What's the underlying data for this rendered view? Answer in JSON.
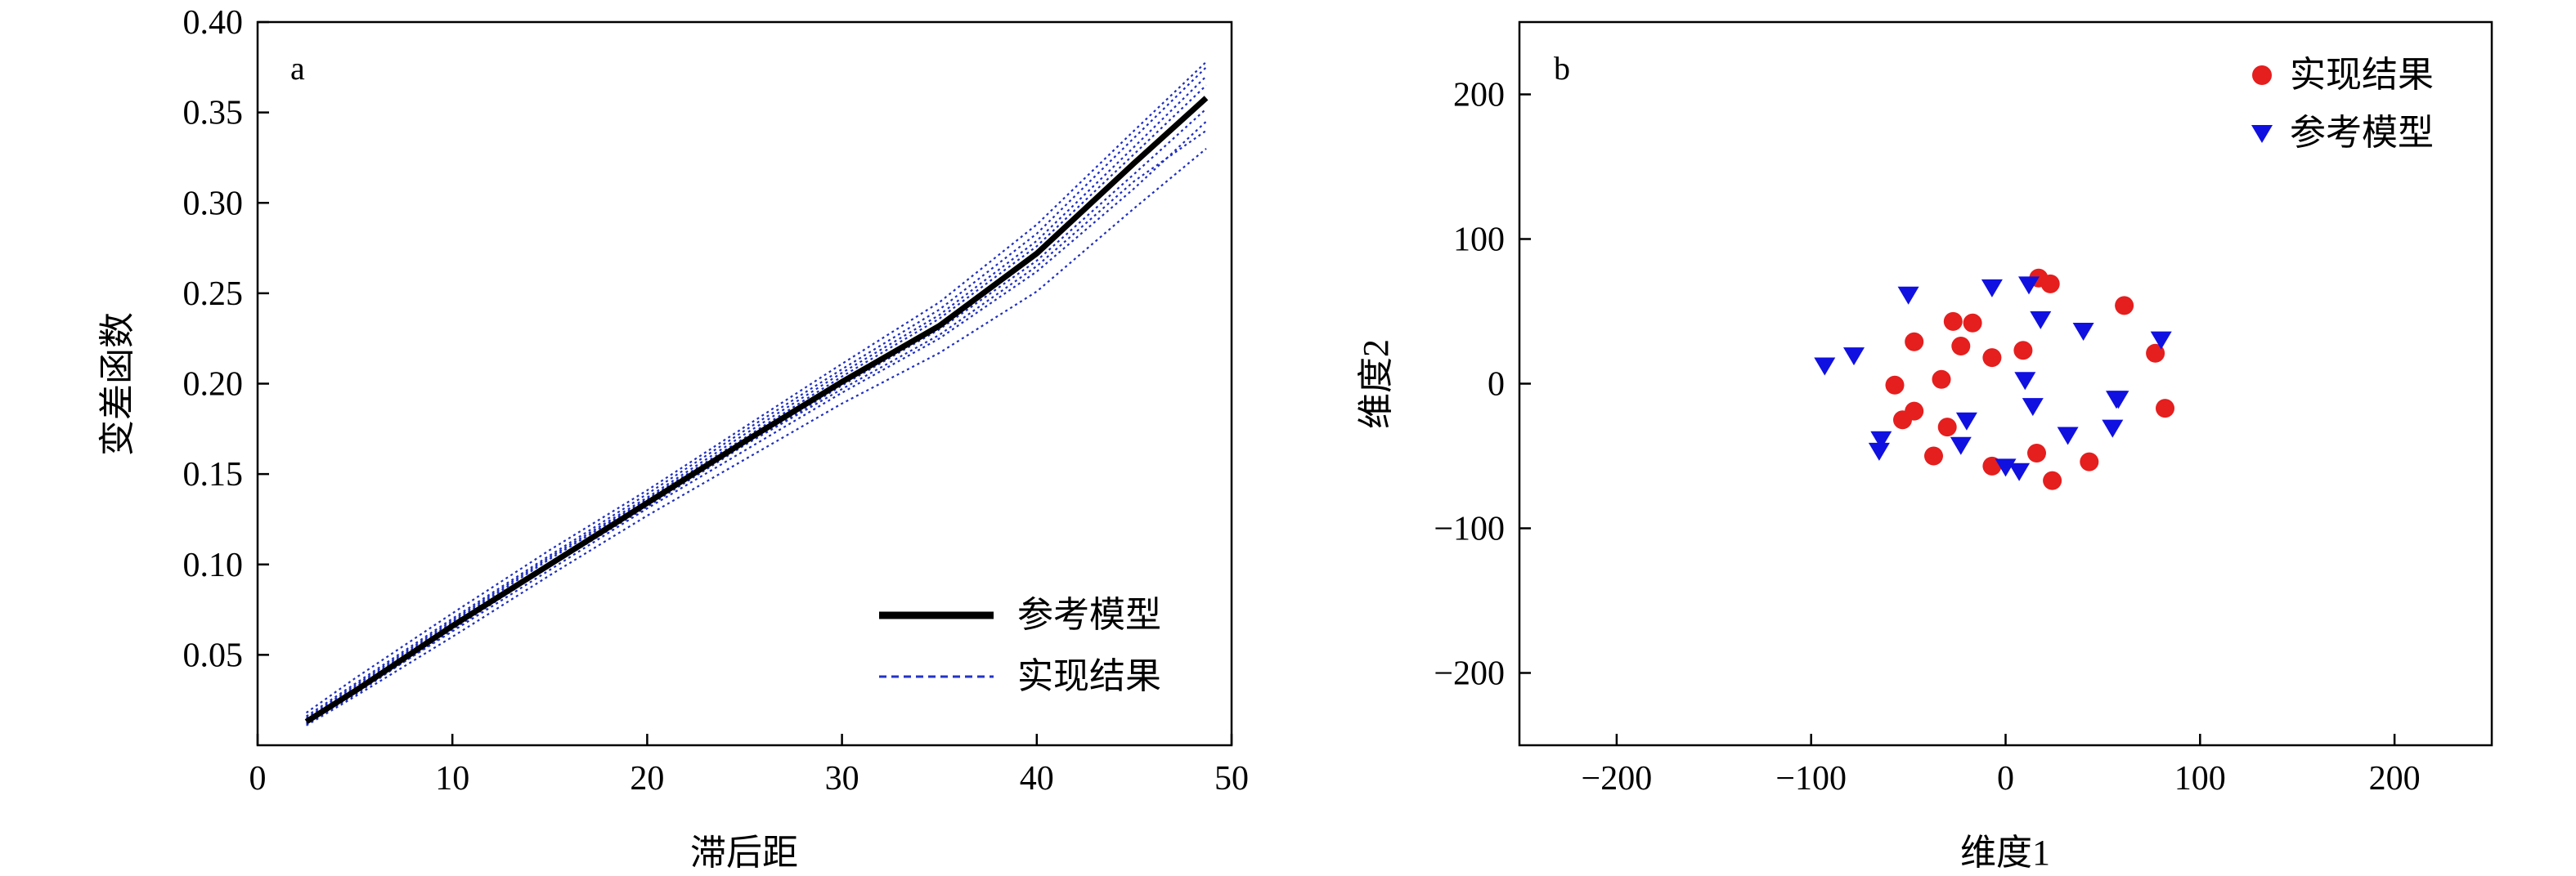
{
  "chart_data": [
    {
      "type": "line",
      "panel_label": "a",
      "xlabel": "滞后距",
      "ylabel": "变差函数",
      "xlim": [
        0,
        50
      ],
      "ylim": [
        0,
        0.4
      ],
      "xticks": [
        0,
        10,
        20,
        30,
        40,
        50
      ],
      "yticks": [
        0.05,
        0.1,
        0.15,
        0.2,
        0.25,
        0.3,
        0.35,
        0.4
      ],
      "xtick_labels": [
        "0",
        "10",
        "20",
        "30",
        "40",
        "50"
      ],
      "ytick_labels": [
        "0.05",
        "0.10",
        "0.15",
        "0.20",
        "0.25",
        "0.30",
        "0.35",
        "0.40"
      ],
      "legend_position": "bottom-right",
      "colors": {
        "reference": "#000000",
        "realizations": "#1f2fbf"
      },
      "x": [
        2.5,
        5,
        10,
        15,
        20,
        25,
        30,
        35,
        40,
        45,
        48.7
      ],
      "series": [
        {
          "name": "参考模型",
          "style": "solid-thick",
          "values": [
            0.013,
            0.03,
            0.066,
            0.1,
            0.134,
            0.168,
            0.201,
            0.232,
            0.272,
            0.322,
            0.358
          ]
        },
        {
          "name": "实现结果",
          "style": "dotted",
          "values": [
            0.016,
            0.034,
            0.07,
            0.105,
            0.139,
            0.174,
            0.208,
            0.241,
            0.283,
            0.336,
            0.375
          ]
        },
        {
          "style": "dotted",
          "values": [
            0.013,
            0.029,
            0.063,
            0.097,
            0.131,
            0.163,
            0.195,
            0.225,
            0.262,
            0.308,
            0.345
          ]
        },
        {
          "style": "dotted",
          "values": [
            0.011,
            0.027,
            0.06,
            0.094,
            0.127,
            0.158,
            0.189,
            0.217,
            0.251,
            0.297,
            0.33
          ]
        },
        {
          "style": "dotted",
          "values": [
            0.018,
            0.037,
            0.073,
            0.108,
            0.141,
            0.176,
            0.211,
            0.245,
            0.288,
            0.34,
            0.378
          ]
        },
        {
          "style": "dotted",
          "values": [
            0.014,
            0.032,
            0.068,
            0.103,
            0.136,
            0.17,
            0.204,
            0.236,
            0.276,
            0.327,
            0.365
          ]
        },
        {
          "style": "dotted",
          "values": [
            0.012,
            0.028,
            0.064,
            0.099,
            0.132,
            0.166,
            0.199,
            0.23,
            0.268,
            0.316,
            0.352
          ]
        },
        {
          "style": "dotted",
          "values": [
            0.015,
            0.033,
            0.069,
            0.104,
            0.137,
            0.172,
            0.206,
            0.238,
            0.279,
            0.331,
            0.37
          ]
        },
        {
          "style": "dotted",
          "values": [
            0.012,
            0.03,
            0.065,
            0.1,
            0.134,
            0.166,
            0.197,
            0.227,
            0.265,
            0.312,
            0.34
          ]
        }
      ]
    },
    {
      "type": "scatter",
      "panel_label": "b",
      "xlabel": "维度1",
      "ylabel": "维度2",
      "xlim": [
        -250,
        250
      ],
      "ylim": [
        -250,
        250
      ],
      "xticks": [
        -200,
        -100,
        0,
        100,
        200
      ],
      "yticks": [
        -200,
        -100,
        0,
        100,
        200
      ],
      "xtick_labels": [
        "−200",
        "−100",
        "0",
        "100",
        "200"
      ],
      "ytick_labels": [
        "−200",
        "−100",
        "0",
        "100",
        "200"
      ],
      "legend_position": "top-right",
      "colors": {
        "realizations": "#e51e1e",
        "reference": "#1010e0"
      },
      "series": [
        {
          "name": "实现结果",
          "marker": "circle",
          "x": [
            17,
            23,
            61,
            -27,
            -17,
            -47,
            -7,
            9,
            77,
            -57,
            -33,
            -47,
            -53,
            -30,
            82,
            -23,
            -37,
            16,
            43,
            -7,
            24
          ],
          "y": [
            73,
            69,
            54,
            43,
            42,
            29,
            18,
            23,
            21,
            -1,
            3,
            -19,
            -25,
            -30,
            -17,
            26,
            -50,
            -48,
            -54,
            -57,
            -67
          ]
        },
        {
          "name": "参考模型",
          "marker": "triangle-down",
          "x": [
            -50,
            -7,
            12,
            18,
            -93,
            -78,
            40,
            80,
            10,
            14,
            58,
            -20,
            -23,
            -64,
            -65,
            55,
            57,
            32,
            0,
            7
          ],
          "y": [
            62,
            67,
            69,
            45,
            13,
            20,
            37,
            31,
            3,
            -15,
            -10,
            -25,
            -42,
            -38,
            -46,
            -30,
            -10,
            -35,
            -57,
            -60
          ]
        }
      ]
    }
  ]
}
